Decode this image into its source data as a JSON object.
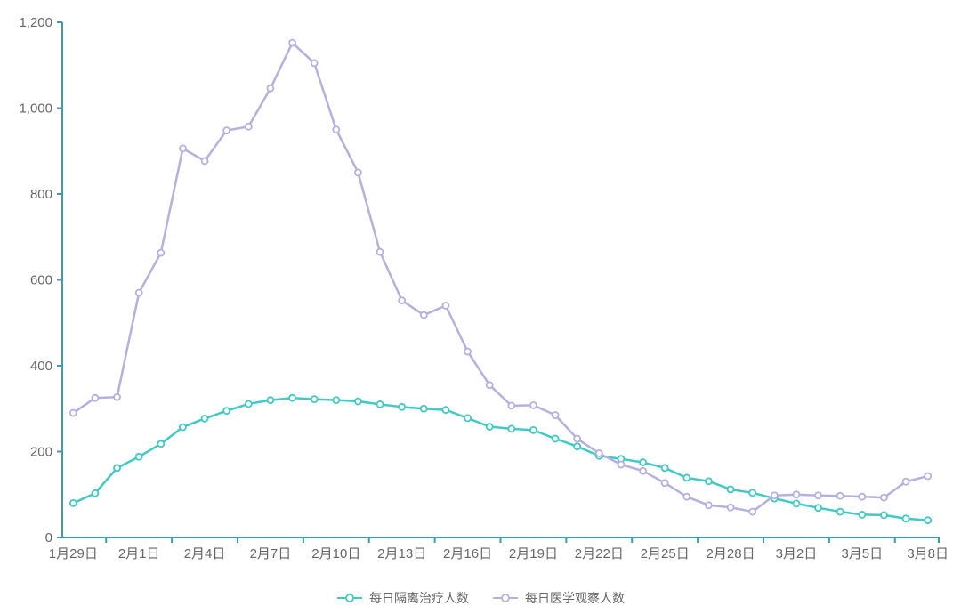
{
  "chart_data": {
    "type": "line",
    "title": "",
    "xlabel": "",
    "ylabel": "",
    "categories": [
      "1月29日",
      "1月30日",
      "1月31日",
      "2月1日",
      "2月2日",
      "2月3日",
      "2月4日",
      "2月5日",
      "2月6日",
      "2月7日",
      "2月8日",
      "2月9日",
      "2月10日",
      "2月11日",
      "2月12日",
      "2月13日",
      "2月14日",
      "2月15日",
      "2月16日",
      "2月17日",
      "2月18日",
      "2月19日",
      "2月20日",
      "2月21日",
      "2月22日",
      "2月23日",
      "2月24日",
      "2月25日",
      "2月26日",
      "2月27日",
      "2月28日",
      "2月29日",
      "3月1日",
      "3月2日",
      "3月3日",
      "3月4日",
      "3月5日",
      "3月6日",
      "3月7日",
      "3月8日"
    ],
    "x_label_interval": 3,
    "series": [
      {
        "name": "每日隔离治疗人数",
        "color": "#41c9c3",
        "marker": "hollow-circle",
        "values": [
          80,
          103,
          162,
          188,
          218,
          257,
          277,
          295,
          311,
          320,
          325,
          322,
          320,
          317,
          310,
          304,
          300,
          297,
          278,
          258,
          253,
          250,
          230,
          212,
          190,
          183,
          175,
          162,
          139,
          131,
          112,
          104,
          91,
          79,
          69,
          60,
          53,
          52,
          44,
          40
        ]
      },
      {
        "name": "每日医学观察人数",
        "color": "#b7afdf",
        "marker": "hollow-circle",
        "values": [
          290,
          325,
          327,
          570,
          663,
          906,
          877,
          948,
          957,
          1046,
          1152,
          1105,
          950,
          850,
          665,
          552,
          518,
          540,
          433,
          355,
          307,
          308,
          285,
          230,
          196,
          170,
          155,
          127,
          95,
          75,
          70,
          60,
          98,
          100,
          98,
          97,
          95,
          93,
          130,
          143
        ]
      }
    ],
    "ylim": [
      0,
      1200
    ],
    "ytick_step": 200,
    "ytick_labels": [
      "0",
      "200",
      "400",
      "600",
      "800",
      "1,000",
      "1,200"
    ],
    "grid": false,
    "legend_position": "bottom-center",
    "axis_color": "#3d9daa",
    "label_color": "#666666",
    "background_color": "#ffffff"
  }
}
